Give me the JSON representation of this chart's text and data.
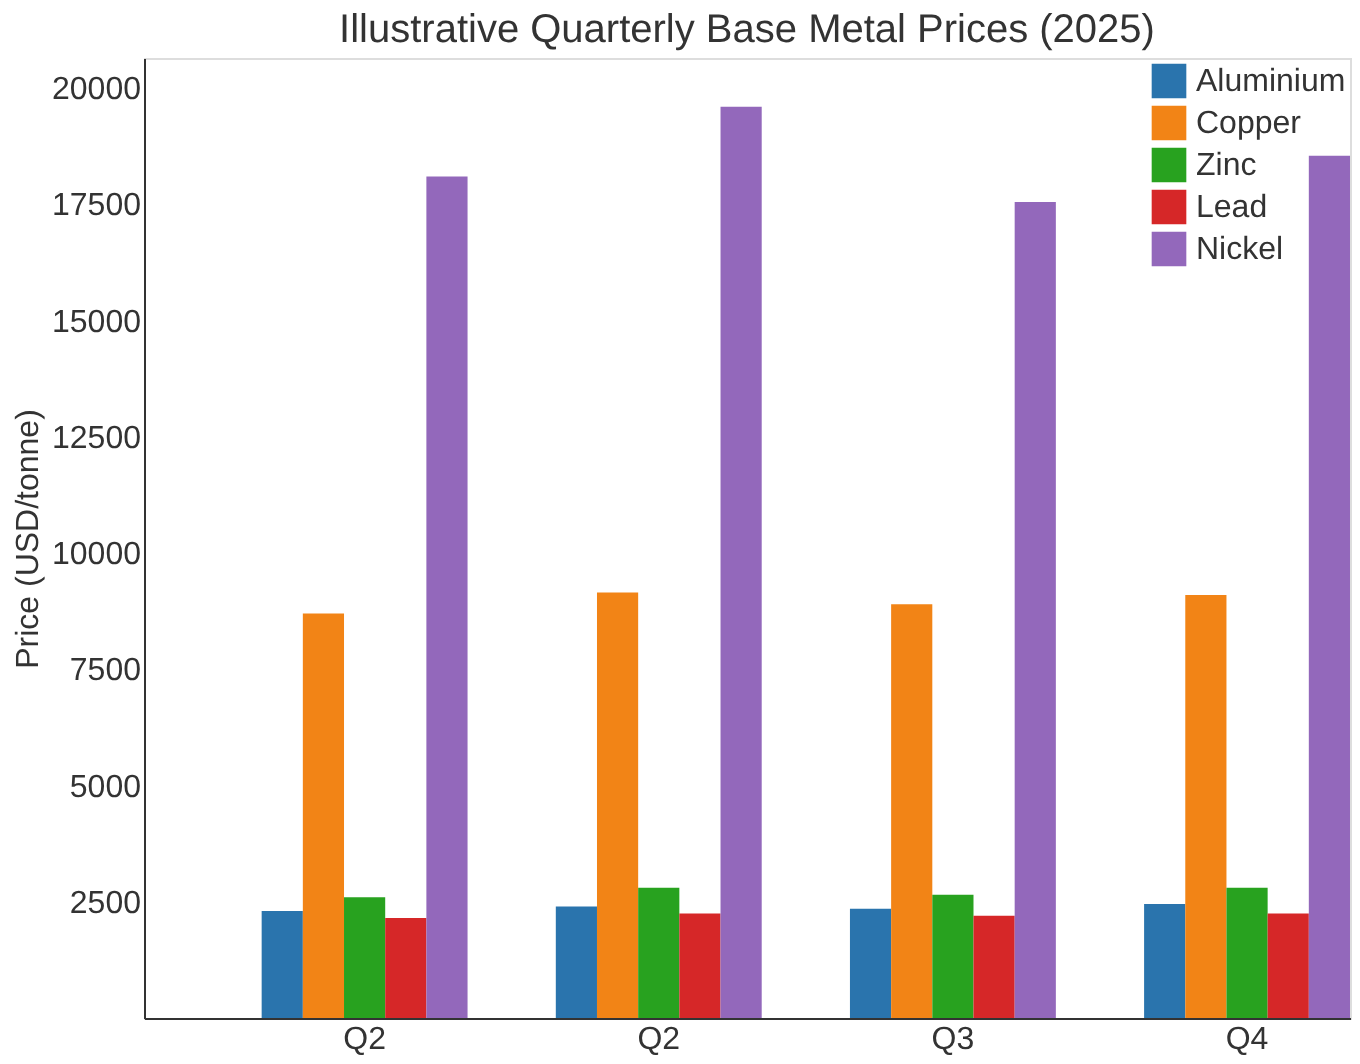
{
  "chart_data": {
    "type": "bar",
    "title": "Illustrative Quarterly Base Metal Prices (2025)",
    "ylabel": "Price (USD/tonne)",
    "categories": [
      "Q2",
      "Q2",
      "Q3",
      "Q4"
    ],
    "series": [
      {
        "name": "Aluminium",
        "color": "#2a74ad",
        "values": [
          2300,
          2400,
          2350,
          2450
        ]
      },
      {
        "name": "Copper",
        "color": "#f28416",
        "values": [
          8700,
          9150,
          8900,
          9100
        ]
      },
      {
        "name": "Zinc",
        "color": "#28a21f",
        "values": [
          2600,
          2800,
          2650,
          2800
        ]
      },
      {
        "name": "Lead",
        "color": "#d62728",
        "values": [
          2150,
          2250,
          2200,
          2250
        ]
      },
      {
        "name": "Nickel",
        "color": "#9368bb",
        "values": [
          18100,
          19600,
          17550,
          18550
        ]
      }
    ],
    "ylim": [
      0,
      20650
    ],
    "yticks": [
      2500,
      5000,
      7500,
      10000,
      12500,
      15000,
      17500,
      20000
    ],
    "grid": false,
    "legend": "top right"
  }
}
